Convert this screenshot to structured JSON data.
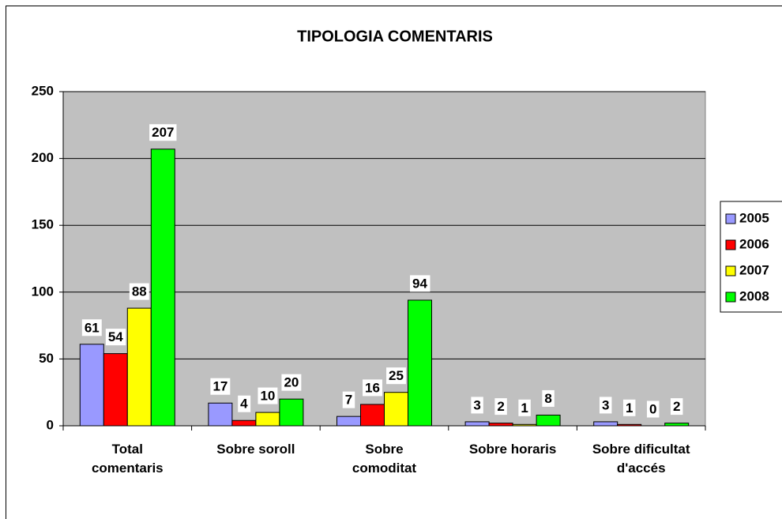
{
  "chart_data": {
    "type": "bar",
    "title": "TIPOLOGIA COMENTARIS",
    "categories": [
      "Total comentaris",
      "Sobre soroll",
      "Sobre comoditat",
      "Sobre horaris",
      "Sobre dificultat d'accés"
    ],
    "series": [
      {
        "name": "2005",
        "color": "#9999ff",
        "values": [
          61,
          17,
          7,
          3,
          3
        ]
      },
      {
        "name": "2006",
        "color": "#ff0000",
        "values": [
          54,
          4,
          16,
          2,
          1
        ]
      },
      {
        "name": "2007",
        "color": "#ffff00",
        "values": [
          88,
          10,
          25,
          1,
          0
        ]
      },
      {
        "name": "2008",
        "color": "#00ff00",
        "values": [
          207,
          20,
          94,
          8,
          2
        ]
      }
    ],
    "ylim": [
      0,
      250
    ],
    "yticks": [
      0,
      50,
      100,
      150,
      200,
      250
    ],
    "grid": true,
    "legend": "right"
  }
}
